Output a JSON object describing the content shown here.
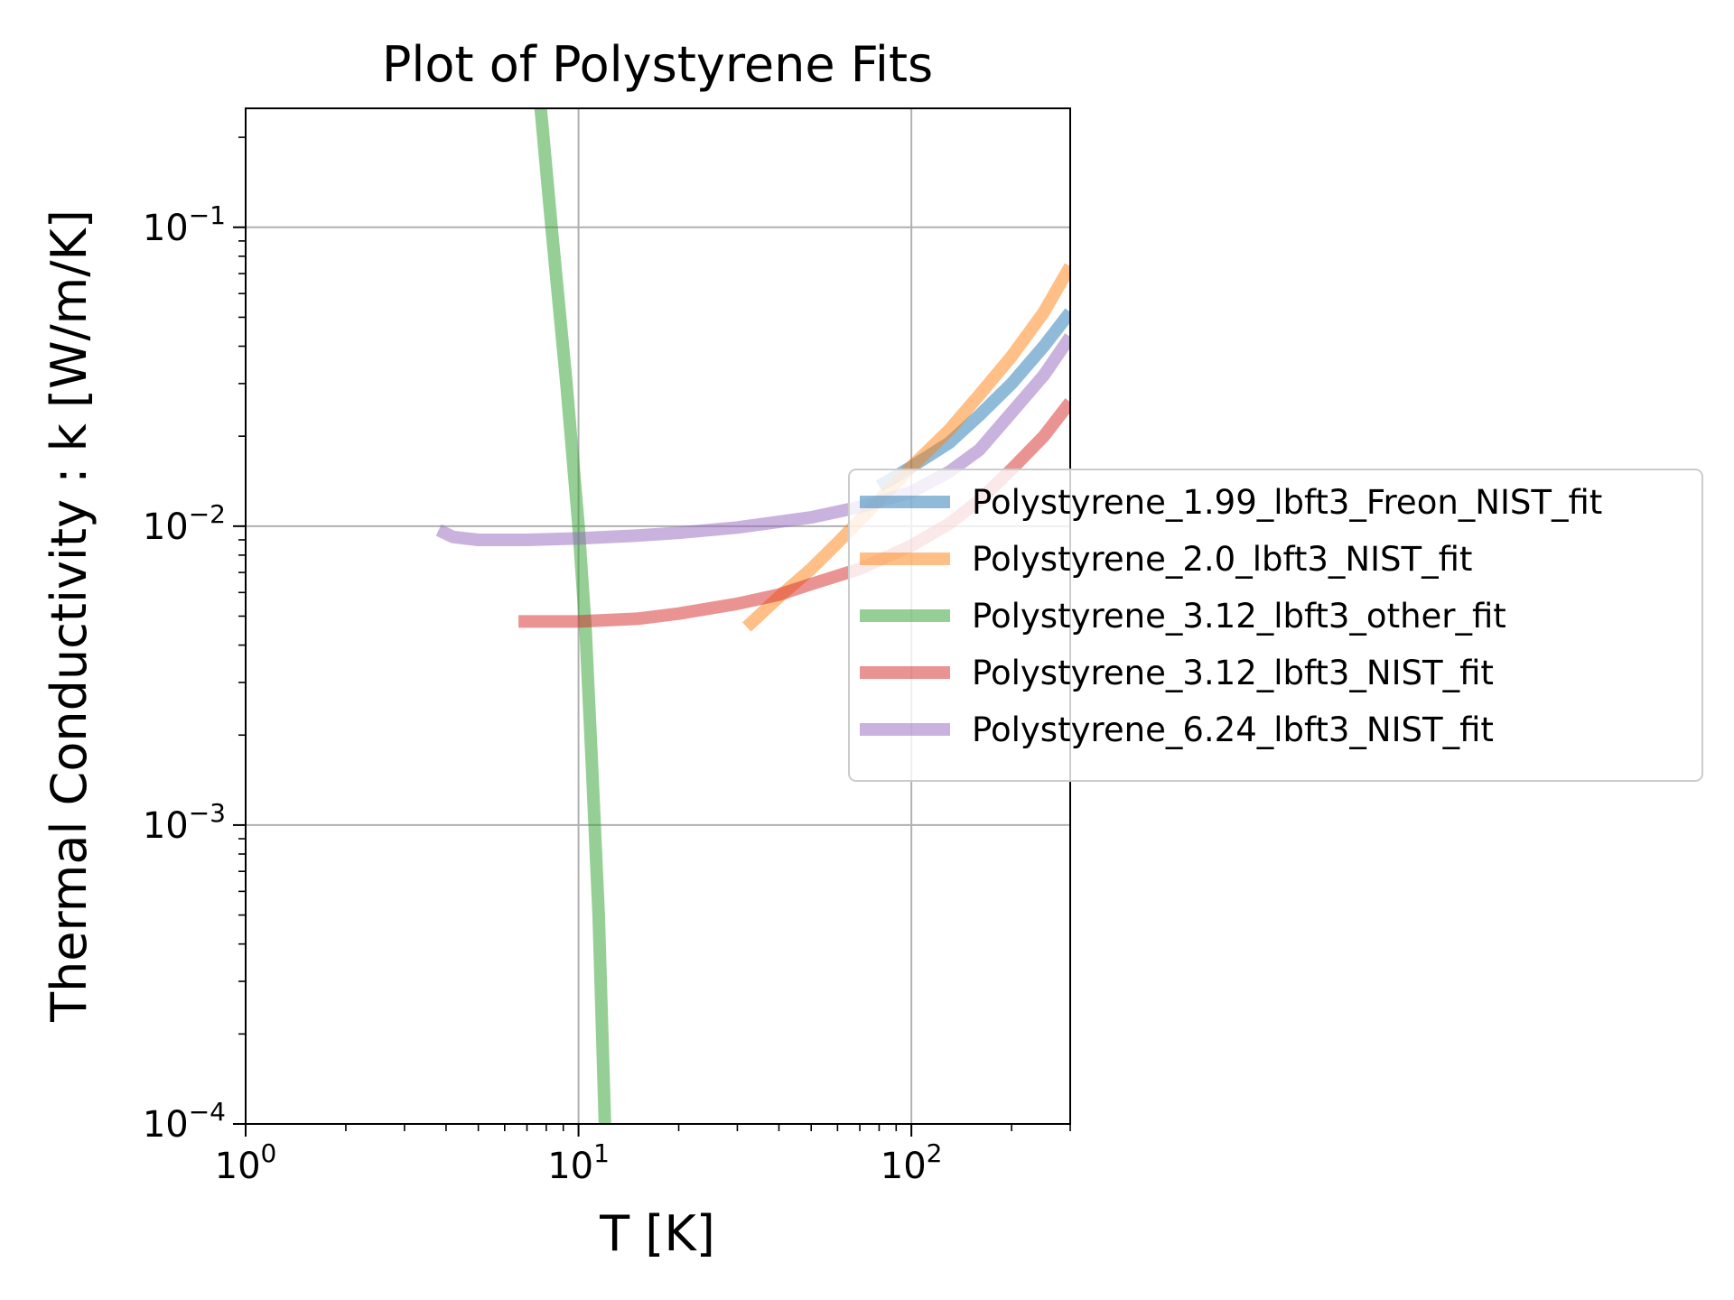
{
  "chart_data": {
    "type": "line",
    "title": "Plot of Polystyrene Fits",
    "xlabel": "T [K]",
    "ylabel": "Thermal Conductivity : k [W/m/K]",
    "xscale": "log",
    "yscale": "log",
    "xlim": [
      1,
      300
    ],
    "ylim": [
      0.0001,
      0.25
    ],
    "grid": true,
    "legend_position": "right, outside plot area",
    "x_ticks": [
      {
        "value": 1,
        "base": "10",
        "exp": "0"
      },
      {
        "value": 10,
        "base": "10",
        "exp": "1"
      },
      {
        "value": 100,
        "base": "10",
        "exp": "2"
      }
    ],
    "y_ticks": [
      {
        "value": 0.1,
        "base": "10",
        "exp": "−1"
      },
      {
        "value": 0.01,
        "base": "10",
        "exp": "−2"
      },
      {
        "value": 0.001,
        "base": "10",
        "exp": "−3"
      },
      {
        "value": 0.0001,
        "base": "10",
        "exp": "−4"
      }
    ],
    "series": [
      {
        "name": "Polystyrene_1.99_lbft3_Freon_NIST_fit",
        "color": "#1f77b4",
        "points": [
          [
            80,
            0.0136
          ],
          [
            100,
            0.0158
          ],
          [
            130,
            0.019
          ],
          [
            160,
            0.0235
          ],
          [
            200,
            0.03
          ],
          [
            250,
            0.04
          ],
          [
            300,
            0.052
          ]
        ]
      },
      {
        "name": "Polystyrene_2.0_lbft3_NIST_fit",
        "color": "#ff7f0e",
        "points": [
          [
            32,
            0.0046
          ],
          [
            40,
            0.0058
          ],
          [
            50,
            0.0072
          ],
          [
            60,
            0.0088
          ],
          [
            80,
            0.0122
          ],
          [
            100,
            0.0158
          ],
          [
            130,
            0.021
          ],
          [
            160,
            0.0275
          ],
          [
            200,
            0.037
          ],
          [
            250,
            0.052
          ],
          [
            300,
            0.074
          ]
        ]
      },
      {
        "name": "Polystyrene_3.12_lbft3_other_fit",
        "color": "#2ca02c",
        "points": [
          [
            7.7,
            0.25
          ],
          [
            8.3,
            0.1
          ],
          [
            9.2,
            0.03
          ],
          [
            10,
            0.01
          ],
          [
            10.5,
            0.0045
          ],
          [
            11,
            0.0015
          ],
          [
            11.5,
            0.0005
          ],
          [
            12,
            0.0001
          ]
        ]
      },
      {
        "name": "Polystyrene_3.12_lbft3_NIST_fit",
        "color": "#d62728",
        "points": [
          [
            6.6,
            0.0048
          ],
          [
            10,
            0.0048
          ],
          [
            15,
            0.0049
          ],
          [
            20,
            0.0051
          ],
          [
            30,
            0.0055
          ],
          [
            40,
            0.0059
          ],
          [
            50,
            0.0064
          ],
          [
            70,
            0.0072
          ],
          [
            100,
            0.0086
          ],
          [
            130,
            0.0102
          ],
          [
            160,
            0.0122
          ],
          [
            200,
            0.0155
          ],
          [
            250,
            0.02
          ],
          [
            300,
            0.026
          ]
        ]
      },
      {
        "name": "Polystyrene_6.24_lbft3_NIST_fit",
        "color": "#9467bd",
        "points": [
          [
            3.8,
            0.0097
          ],
          [
            4.2,
            0.0092
          ],
          [
            5,
            0.009
          ],
          [
            7,
            0.009
          ],
          [
            10,
            0.0091
          ],
          [
            15,
            0.0093
          ],
          [
            20,
            0.0095
          ],
          [
            30,
            0.0099
          ],
          [
            50,
            0.0107
          ],
          [
            70,
            0.0116
          ],
          [
            100,
            0.013
          ],
          [
            130,
            0.0152
          ],
          [
            160,
            0.018
          ],
          [
            200,
            0.024
          ],
          [
            250,
            0.032
          ],
          [
            300,
            0.043
          ]
        ]
      }
    ]
  }
}
